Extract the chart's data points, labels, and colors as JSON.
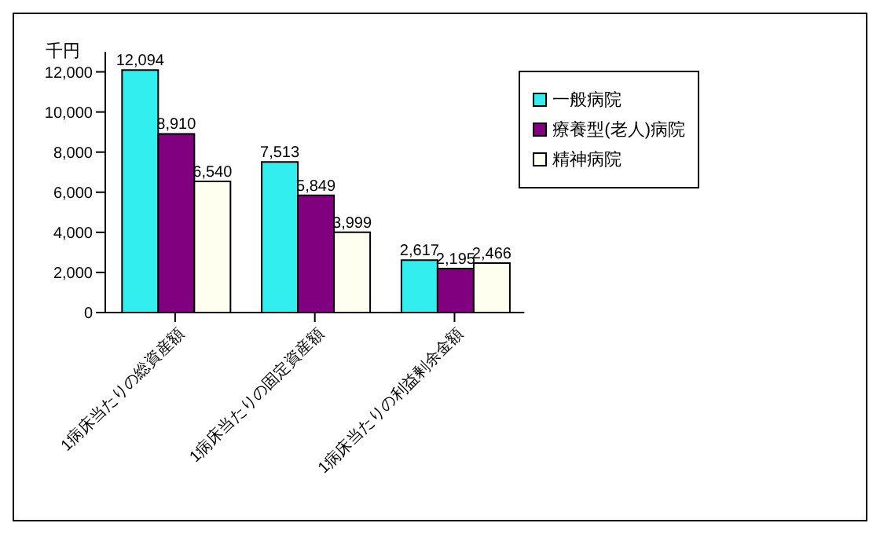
{
  "chart_data": {
    "type": "bar",
    "ylabel": "千円",
    "categories": [
      "1病床当たりの総資産額",
      "1病床当たりの固定資産額",
      "1病床当たりの利益剰余金額"
    ],
    "series": [
      {
        "name": "一般病院",
        "color": "#33eeee",
        "values": [
          12094,
          7513,
          2617
        ],
        "value_labels": [
          "12,094",
          "7,513",
          "2,617"
        ]
      },
      {
        "name": "療養型(老人)病院",
        "color": "#800080",
        "values": [
          8910,
          5849,
          2195
        ],
        "value_labels": [
          "8,910",
          "5,849",
          "2,195"
        ]
      },
      {
        "name": "精神病院",
        "color": "#fffff0",
        "values": [
          6540,
          3999,
          2466
        ],
        "value_labels": [
          "6,540",
          "3,999",
          "2,466"
        ]
      }
    ],
    "ylim": [
      0,
      13000
    ],
    "yticks": [
      0,
      {
        "value": 2000,
        "label": "2,000"
      },
      {
        "value": 4000,
        "label": "4,000"
      },
      {
        "value": 6000,
        "label": "6,000"
      },
      {
        "value": 8000,
        "label": "8,000"
      },
      {
        "value": 10000,
        "label": "10,000"
      },
      {
        "value": 12000,
        "label": "12,000"
      }
    ],
    "grid": false,
    "legend": "top right"
  }
}
